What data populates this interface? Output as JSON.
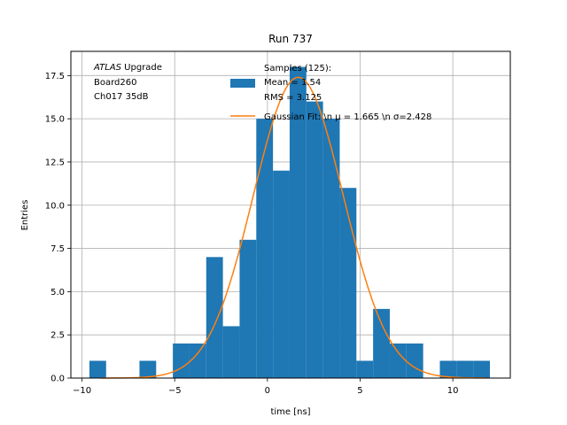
{
  "chart_data": {
    "type": "bar",
    "title": "Run 737",
    "xlabel": "time [ns]",
    "ylabel": "Entries",
    "xlim": [
      -10.6,
      13.1
    ],
    "ylim": [
      0,
      18.9
    ],
    "grid": true,
    "xticks": [
      -10,
      -5,
      0,
      5,
      10
    ],
    "xtick_labels": [
      "−10",
      "−5",
      "0",
      "5",
      "10"
    ],
    "yticks": [
      0,
      2.5,
      5,
      7.5,
      10,
      12.5,
      15,
      17.5
    ],
    "ytick_labels": [
      "0.0",
      "2.5",
      "5.0",
      "7.5",
      "10.0",
      "12.5",
      "15.0",
      "17.5"
    ],
    "bin_edges": [
      -9.6,
      -8.7,
      -7.8,
      -6.9,
      -6.0,
      -5.1,
      -4.2,
      -3.3,
      -2.4,
      -1.5,
      -0.6,
      0.3,
      1.2,
      2.1,
      3.0,
      3.9,
      4.8,
      5.7,
      6.6,
      7.5,
      8.4,
      9.3,
      10.2,
      11.1,
      12.0
    ],
    "counts": [
      1,
      0,
      0,
      1,
      0,
      2,
      2,
      7,
      3,
      8,
      15,
      12,
      18,
      16,
      15,
      11,
      1,
      4,
      2,
      2,
      0,
      1,
      1,
      1
    ],
    "histogram_color": "#1f77b4",
    "fit": {
      "type": "gaussian",
      "mu": 1.665,
      "sigma": 2.428,
      "amplitude": 17.4,
      "x_range": [
        -9.0,
        11.8
      ],
      "color": "#ff7f0e"
    },
    "legend": {
      "placement": "upper-center",
      "entries": [
        {
          "lines": [
            "Samples (125):",
            " Mean = 1.54",
            " RMS = 3.125"
          ],
          "kind": "patch",
          "color": "#1f77b4"
        },
        {
          "lines": [
            "Gaussian Fit: \\n μ = 1.665 \\n σ=2.428"
          ],
          "kind": "line",
          "color": "#ff7f0e"
        }
      ]
    },
    "annotation": {
      "italic": "ATLAS",
      "rest": " Upgrade",
      "lines": [
        " Board260",
        " Ch017 35dB"
      ]
    }
  }
}
